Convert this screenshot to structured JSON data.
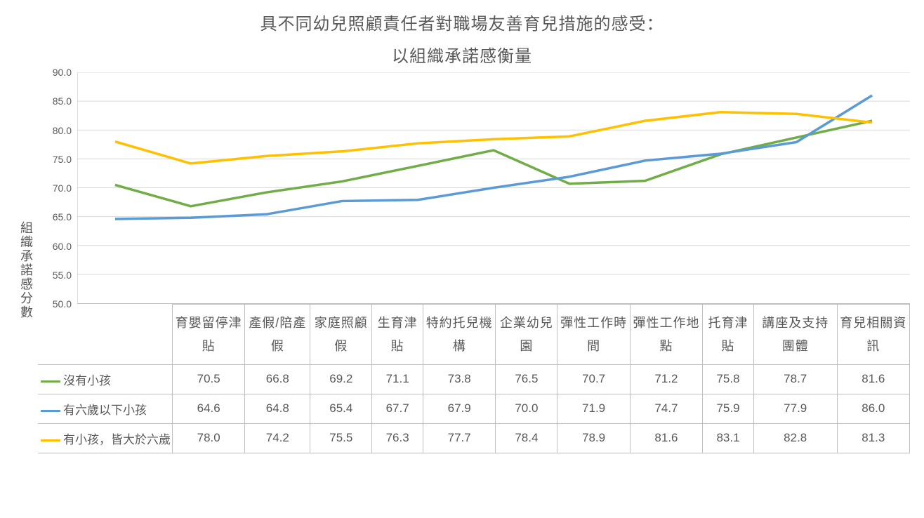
{
  "title_line1": "具不同幼兒照顧責任者對職場友善育兒措施的感受：",
  "title_line2": "以組織承諾感衡量",
  "y_axis_label": "組織承諾感分數",
  "background_color": "#ffffff",
  "text_color": "#595959",
  "grid_color": "#d9d9d9",
  "axis_color": "#bfbfbf",
  "title_fontsize": 24,
  "label_fontsize": 18,
  "tick_fontsize": 14,
  "table_fontsize": 17,
  "ylim": [
    50.0,
    90.0
  ],
  "ytick_step": 5.0,
  "yticks": [
    "90.0",
    "85.0",
    "80.0",
    "75.0",
    "70.0",
    "65.0",
    "60.0",
    "55.0",
    "50.0"
  ],
  "line_width": 3.5,
  "categories": [
    "育嬰留停津貼",
    "產假/陪產假",
    "家庭照顧假",
    "生育津貼",
    "特約托兒機構",
    "企業幼兒園",
    "彈性工作時間",
    "彈性工作地點",
    "托育津貼",
    "講座及支持團體",
    "育兒相關資訊"
  ],
  "series": [
    {
      "name": "沒有小孩",
      "color": "#70ad47",
      "values": [
        70.5,
        66.8,
        69.2,
        71.1,
        73.8,
        76.5,
        70.7,
        71.2,
        75.8,
        78.7,
        81.6
      ]
    },
    {
      "name": "有六歲以下小孩",
      "color": "#5b9bd5",
      "values": [
        64.6,
        64.8,
        65.4,
        67.7,
        67.9,
        70.0,
        71.9,
        74.7,
        75.9,
        77.9,
        86.0
      ]
    },
    {
      "name": "有小孩，皆大於六歲",
      "color": "#ffc000",
      "values": [
        78.0,
        74.2,
        75.5,
        76.3,
        77.7,
        78.4,
        78.9,
        81.6,
        83.1,
        82.8,
        81.3
      ]
    }
  ]
}
